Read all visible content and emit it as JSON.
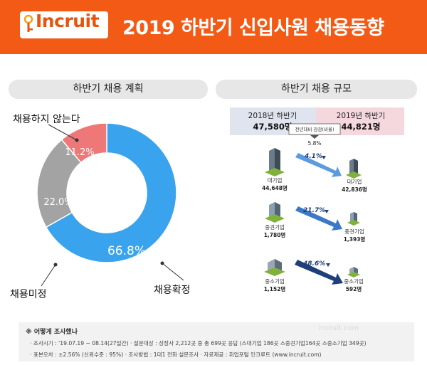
{
  "header": {
    "logo_text": "Incruit",
    "title": "2019 하반기 신입사원 채용동향"
  },
  "panels": {
    "left_title": "하반기 채용 계획",
    "right_title": "하반기 채용 규모"
  },
  "colors": {
    "header_bg": "#f25a16",
    "donut_blue": "#3aa3ee",
    "donut_gray": "#a3a3a3",
    "donut_pink": "#ee7777",
    "prev_box": "#dfe4ef",
    "curr_box": "#f4d8de",
    "arrow_blue": "#3a78c8",
    "arrow_navy": "#1f3f7a"
  },
  "chart_data": [
    {
      "type": "pie",
      "title": "하반기 채용 계획",
      "labels": [
        "채용확정",
        "채용미정",
        "채용하지 않는다"
      ],
      "values": [
        66.8,
        22.0,
        11.2
      ],
      "value_labels": [
        "66.8%",
        "22.0%",
        "11.2%"
      ],
      "donut": true
    },
    {
      "type": "table",
      "title": "하반기 채용 규모",
      "totals": {
        "prev_label": "2018년 하반기",
        "prev_value": "47,580명",
        "curr_label": "2019년 하반기",
        "curr_value": "44,821명",
        "change_label": "전년대비 감감(비율)",
        "change_value": "5.8%"
      },
      "rows": [
        {
          "category": "대기업",
          "prev": "44,648명",
          "curr": "42,836명",
          "change": "4.1%"
        },
        {
          "category": "중견기업",
          "prev": "1,780명",
          "curr": "1,393명",
          "change": "21.7%"
        },
        {
          "category": "중소기업",
          "prev": "1,152명",
          "curr": "592명",
          "change": "48.6%"
        }
      ]
    }
  ],
  "footer": {
    "title": "※ 어떻게 조사했나",
    "line1": "· 조사시기 : '19.07.19 ~ 08.14(27일간)   · 설문대상 : 상장사 2,212곳 중 총 699곳 응답 (스대기업 186곳 스중견기업164곳 스중소기업 349곳)",
    "line2": "· 표본오차 : ±2.56% (신뢰수준 : 95%)   · 조사방법 : 1대1 전화 설문조사   · 자료제공 : 취업포털 인크루트 (www.incruit.com)",
    "watermark": "incruit.com"
  }
}
